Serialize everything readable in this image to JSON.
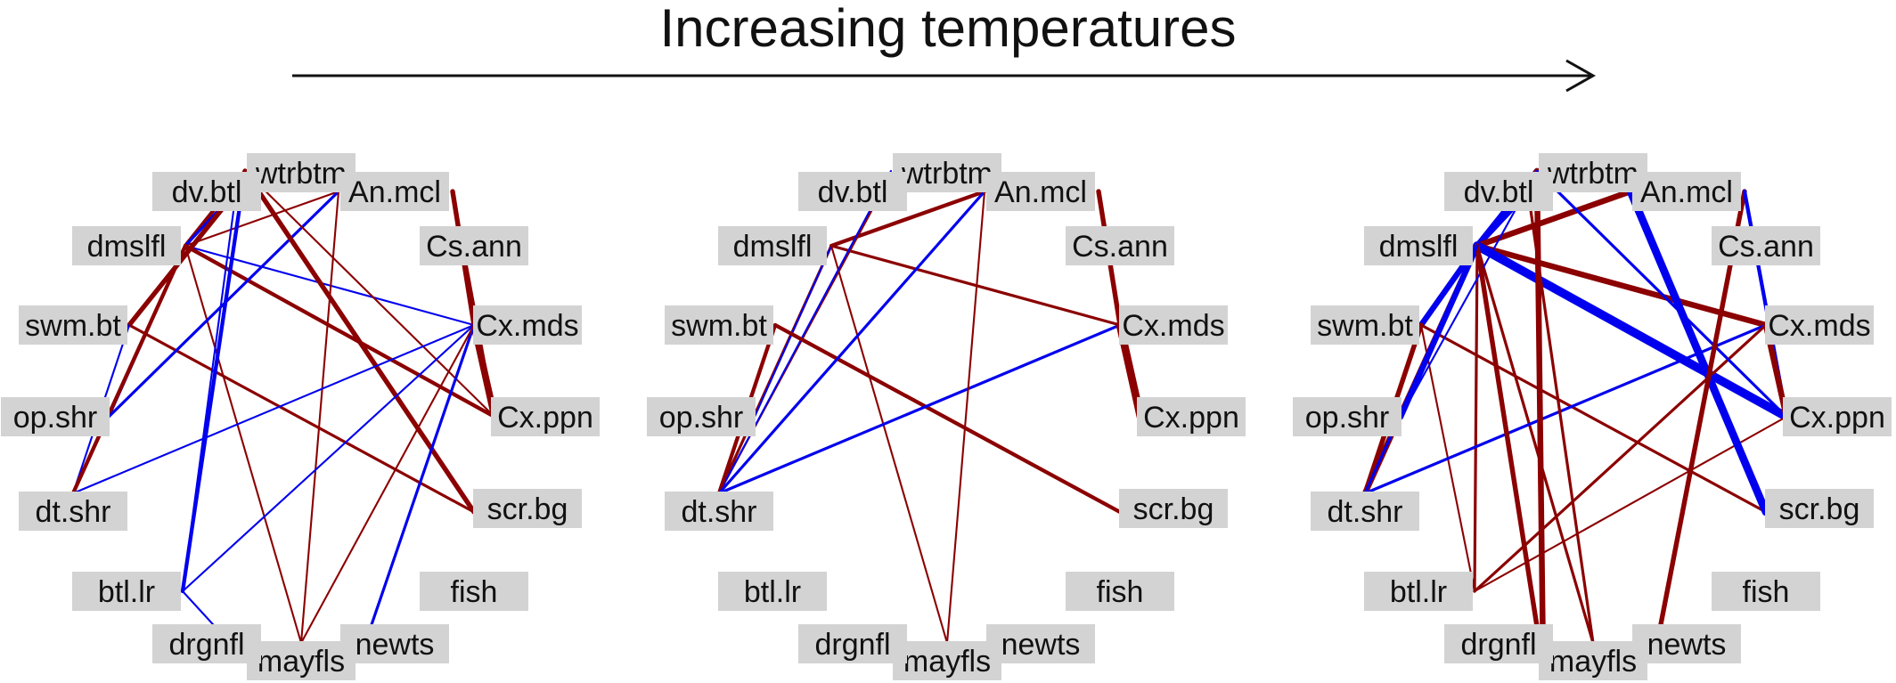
{
  "title": "Increasing temperatures",
  "colors": {
    "positive": "#8b0000",
    "negative": "#0000ee",
    "label_box": "#d3d3d3",
    "text": "#111111"
  },
  "nodes": [
    "wtrbtm",
    "An.mcl",
    "Cs.ann",
    "Cx.mds",
    "Cx.ppn",
    "scr.bg",
    "fish",
    "newts",
    "mayfls",
    "drgnfl",
    "btl.lr",
    "dt.shr",
    "op.shr",
    "swm.bt",
    "dmslfl",
    "dv.btl"
  ],
  "networks": [
    {
      "edges": [
        [
          "dv.btl",
          "wtrbtm",
          "negative",
          1
        ],
        [
          "dmslfl",
          "wtrbtm",
          "positive",
          3
        ],
        [
          "dmslfl",
          "An.mcl",
          "positive",
          1
        ],
        [
          "dmslfl",
          "dv.btl",
          "negative",
          2
        ],
        [
          "dmslfl",
          "Cx.mds",
          "negative",
          1
        ],
        [
          "dmslfl",
          "Cx.ppn",
          "positive",
          3
        ],
        [
          "dmslfl",
          "mayfls",
          "positive",
          1
        ],
        [
          "dmslfl",
          "op.shr",
          "negative",
          2
        ],
        [
          "swm.bt",
          "dv.btl",
          "positive",
          4
        ],
        [
          "swm.bt",
          "scr.bg",
          "positive",
          2
        ],
        [
          "swm.bt",
          "dt.shr",
          "negative",
          1
        ],
        [
          "dmslfl",
          "dt.shr",
          "positive",
          3
        ],
        [
          "op.shr",
          "An.mcl",
          "negative",
          2
        ],
        [
          "wtrbtm",
          "btl.lr",
          "negative",
          3
        ],
        [
          "wtrbtm",
          "Cx.ppn",
          "positive",
          1
        ],
        [
          "wtrbtm",
          "scr.bg",
          "positive",
          4
        ],
        [
          "dv.btl",
          "btl.lr",
          "negative",
          1
        ],
        [
          "An.mcl",
          "mayfls",
          "positive",
          1
        ],
        [
          "Cs.ann",
          "Cx.mds",
          "positive",
          4
        ],
        [
          "Cs.ann",
          "Cx.ppn",
          "positive",
          2
        ],
        [
          "Cx.mds",
          "Cx.ppn",
          "positive",
          6
        ],
        [
          "Cx.mds",
          "dt.shr",
          "negative",
          1
        ],
        [
          "Cx.mds",
          "btl.lr",
          "negative",
          1
        ],
        [
          "Cx.mds",
          "newts",
          "negative",
          2
        ],
        [
          "Cx.mds",
          "mayfls",
          "positive",
          1
        ],
        [
          "btl.lr",
          "drgnfl",
          "negative",
          1
        ],
        [
          "wtrbtm",
          "An.mcl",
          "positive",
          1
        ]
      ]
    },
    {
      "edges": [
        [
          "dmslfl",
          "An.mcl",
          "positive",
          3
        ],
        [
          "dmslfl",
          "dt.shr",
          "positive",
          2
        ],
        [
          "dmslfl",
          "op.shr",
          "negative",
          1
        ],
        [
          "dmslfl",
          "Cx.mds",
          "positive",
          2
        ],
        [
          "dmslfl",
          "mayfls",
          "positive",
          1
        ],
        [
          "dv.btl",
          "dt.shr",
          "positive",
          1
        ],
        [
          "wtrbtm",
          "dt.shr",
          "negative",
          1
        ],
        [
          "swm.bt",
          "dt.shr",
          "positive",
          3
        ],
        [
          "swm.bt",
          "scr.bg",
          "positive",
          3
        ],
        [
          "dt.shr",
          "An.mcl",
          "negative",
          2
        ],
        [
          "dt.shr",
          "Cx.mds",
          "negative",
          2
        ],
        [
          "An.mcl",
          "mayfls",
          "positive",
          1
        ],
        [
          "Cs.ann",
          "Cx.mds",
          "positive",
          4
        ],
        [
          "Cx.mds",
          "Cx.ppn",
          "positive",
          7
        ]
      ]
    },
    {
      "edges": [
        [
          "dmslfl",
          "dv.btl",
          "negative",
          5
        ],
        [
          "dmslfl",
          "wtrbtm",
          "negative",
          5
        ],
        [
          "dmslfl",
          "An.mcl",
          "positive",
          5
        ],
        [
          "dmslfl",
          "Cx.mds",
          "positive",
          5
        ],
        [
          "dmslfl",
          "Cx.ppn",
          "negative",
          8
        ],
        [
          "dmslfl",
          "dt.shr",
          "positive",
          5
        ],
        [
          "dmslfl",
          "op.shr",
          "negative",
          2
        ],
        [
          "dmslfl",
          "btl.lr",
          "positive",
          2
        ],
        [
          "dmslfl",
          "mayfls",
          "positive",
          2
        ],
        [
          "swm.bt",
          "dmslfl",
          "negative",
          5
        ],
        [
          "swm.bt",
          "scr.bg",
          "positive",
          2
        ],
        [
          "swm.bt",
          "btl.lr",
          "positive",
          1
        ],
        [
          "op.shr",
          "dmslfl",
          "negative",
          5
        ],
        [
          "op.shr",
          "wtrbtm",
          "negative",
          1
        ],
        [
          "dt.shr",
          "swm.bt",
          "positive",
          4
        ],
        [
          "dt.shr",
          "Cx.mds",
          "negative",
          2
        ],
        [
          "btl.lr",
          "Cx.mds",
          "positive",
          2
        ],
        [
          "btl.lr",
          "Cx.ppn",
          "positive",
          1
        ],
        [
          "wtrbtm",
          "Cx.ppn",
          "negative",
          2
        ],
        [
          "An.mcl",
          "scr.bg",
          "negative",
          7
        ],
        [
          "Cs.ann",
          "newts",
          "positive",
          4
        ],
        [
          "Cs.ann",
          "Cx.ppn",
          "negative",
          3
        ],
        [
          "Cx.mds",
          "Cx.ppn",
          "positive",
          5
        ],
        [
          "drgnfl",
          "dmslfl",
          "positive",
          4
        ],
        [
          "wtrbtm",
          "drgnfl",
          "positive",
          5
        ],
        [
          "dv.btl",
          "mayfls",
          "positive",
          2
        ],
        [
          "dmslfl",
          "dt.shr",
          "negative",
          2
        ],
        [
          "wtrbtm",
          "An.mcl",
          "negative",
          1
        ]
      ]
    }
  ]
}
